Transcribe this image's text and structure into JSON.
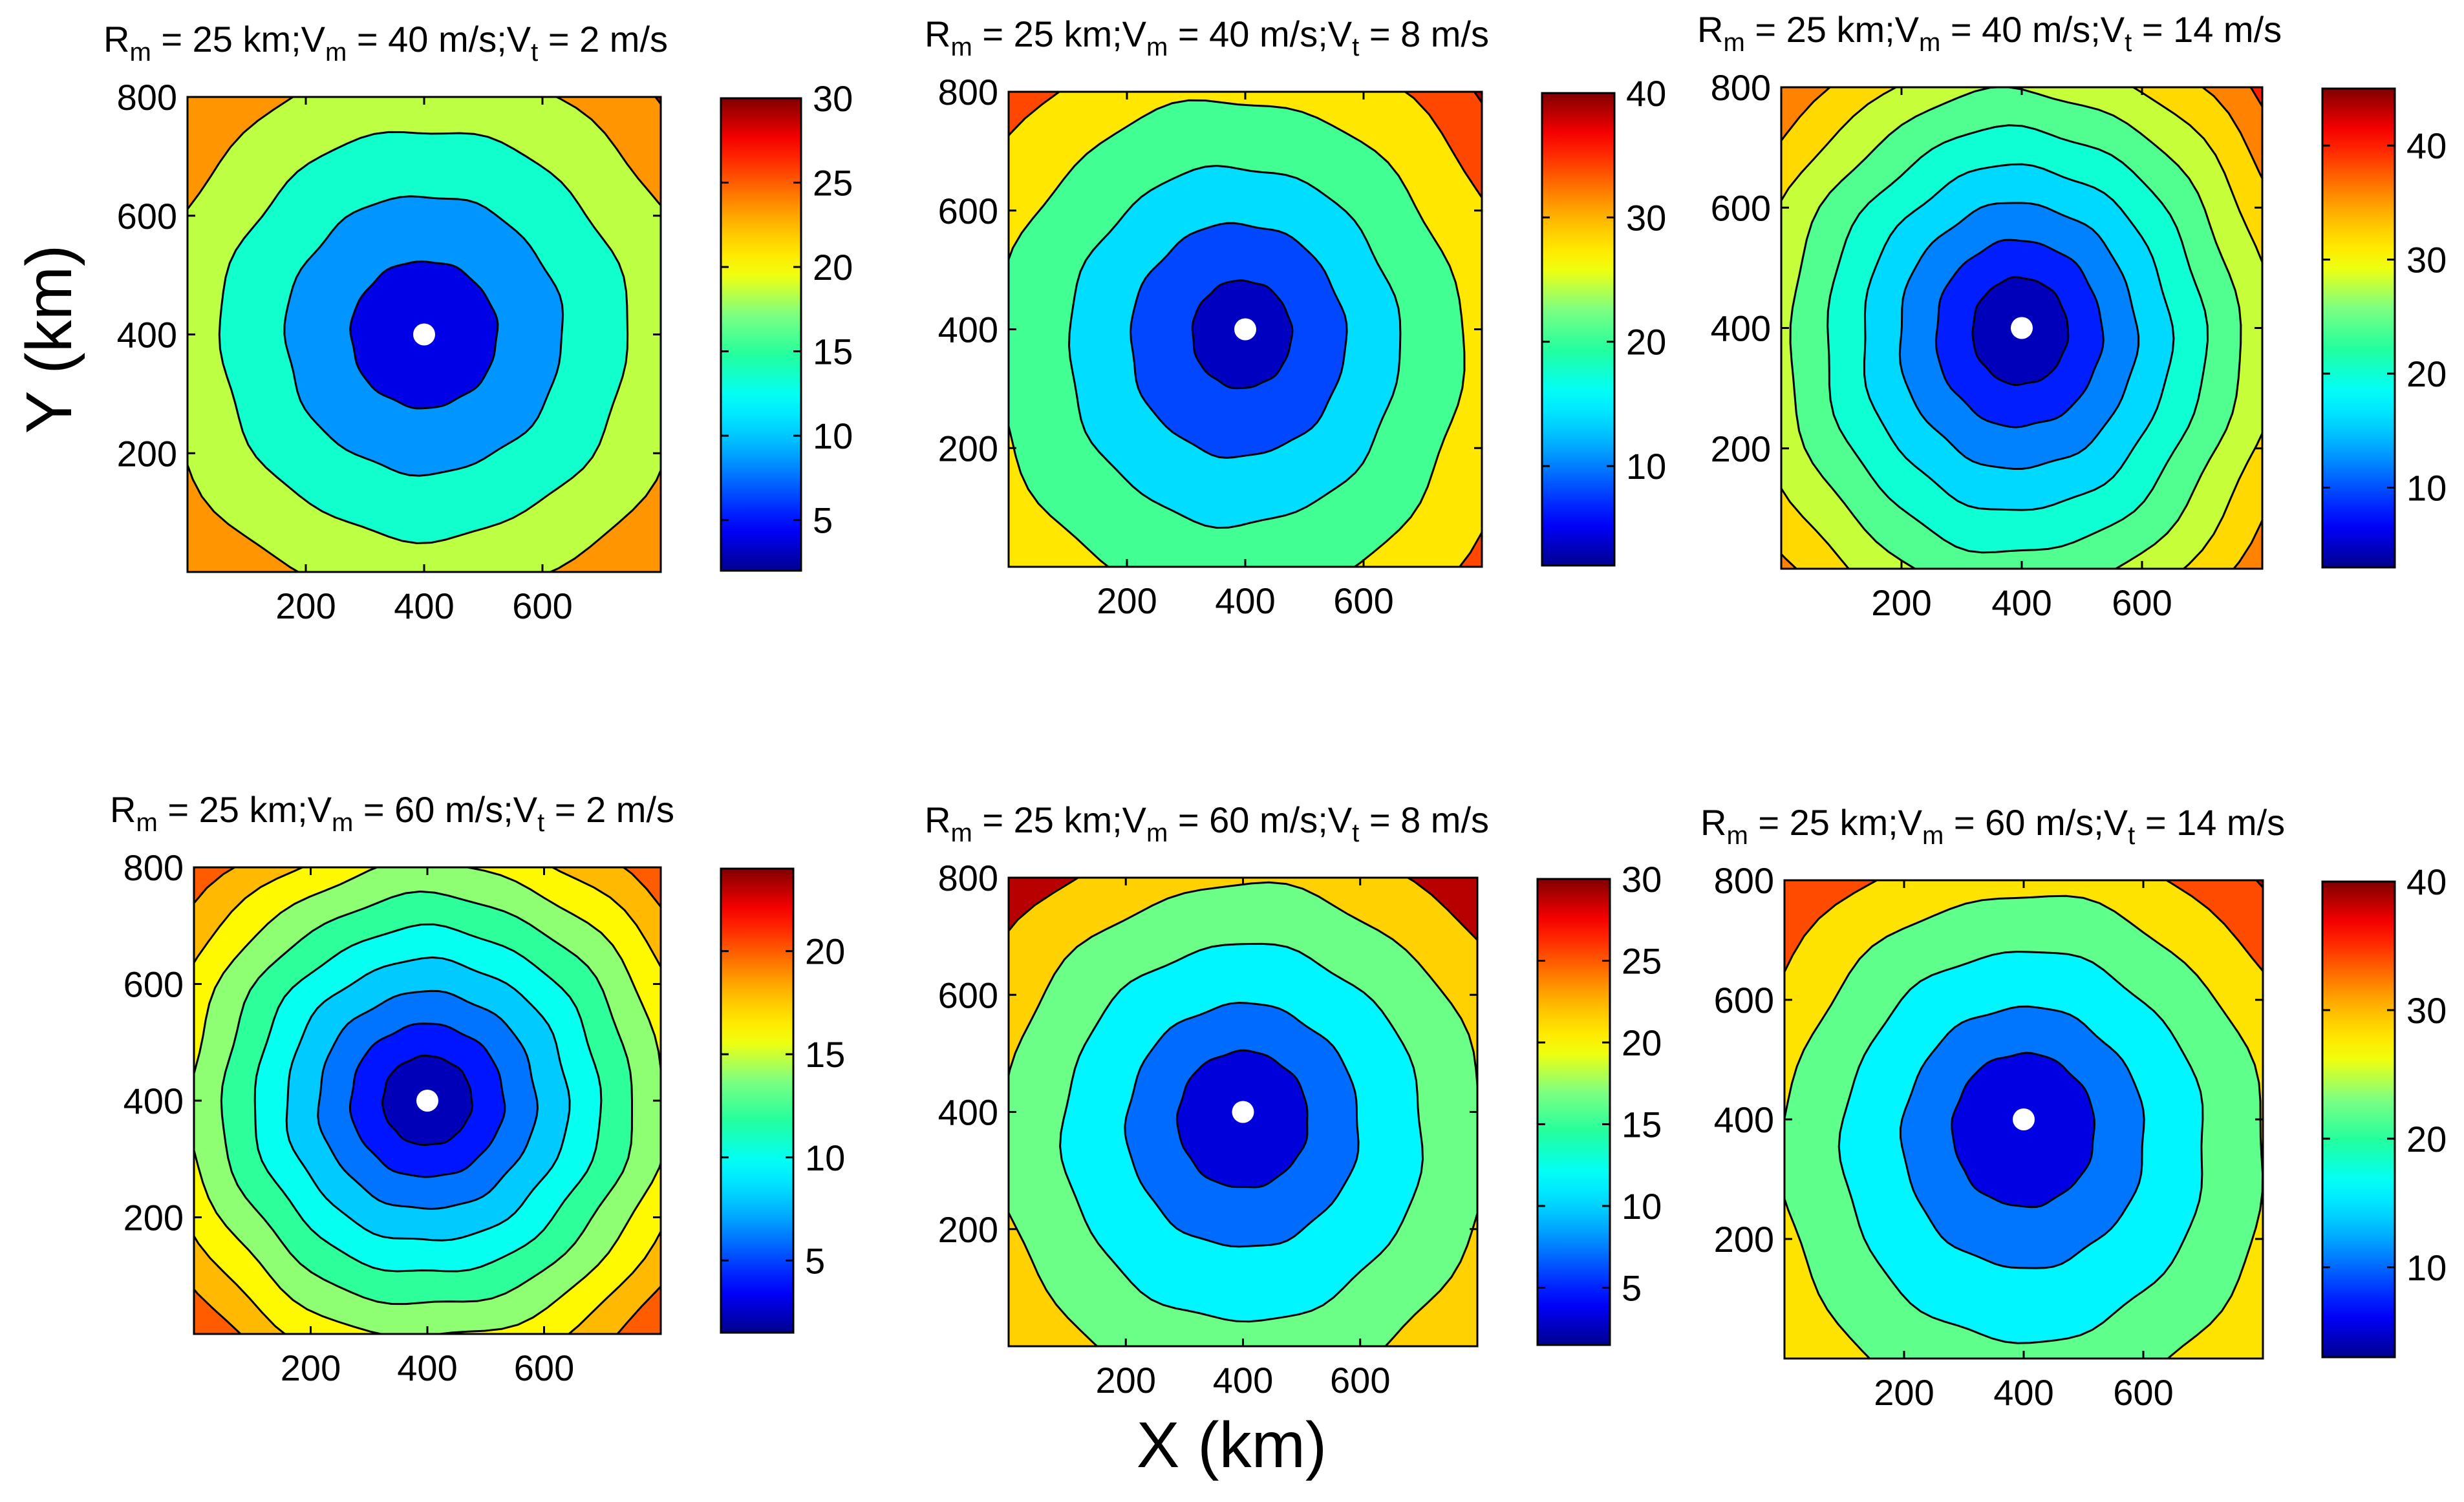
{
  "figure": {
    "xlabel": "X (km)",
    "ylabel": "Y (km)",
    "colormap": [
      "#00008f",
      "#0000ff",
      "#0060ff",
      "#00bfff",
      "#00ffff",
      "#20ff9f",
      "#80ff80",
      "#ffff00",
      "#ffbf00",
      "#ff6000",
      "#ff0000",
      "#800000"
    ]
  },
  "chart_data": [
    {
      "type": "contour",
      "title": {
        "rm": "R",
        "rm_sub": "m",
        "rm_rest": " = 25 km;V",
        "vm_sub": "m",
        "vm_rest": " = 40 m/s;V",
        "vt_sub": "t",
        "vt_rest": " = 2 m/s"
      },
      "xlim": [
        0,
        800
      ],
      "ylim": [
        0,
        800
      ],
      "xticks": [
        200,
        400,
        600
      ],
      "yticks": [
        200,
        400,
        600,
        800
      ],
      "center": [
        400,
        400
      ],
      "colorbar": {
        "min": 2,
        "max": 30,
        "ticks": [
          5,
          10,
          15,
          20,
          25,
          30
        ]
      },
      "levels": [
        6,
        11,
        16,
        21,
        26
      ],
      "shape": {
        "skewX": 0,
        "skewY": 0,
        "stretch": 1.0
      }
    },
    {
      "type": "contour",
      "title": {
        "rm": "R",
        "rm_sub": "m",
        "rm_rest": " = 25 km;V",
        "vm_sub": "m",
        "vm_rest": " = 40 m/s;V",
        "vt_sub": "t",
        "vt_rest": " = 8 m/s"
      },
      "xlim": [
        0,
        800
      ],
      "ylim": [
        0,
        800
      ],
      "xticks": [
        200,
        400,
        600
      ],
      "yticks": [
        200,
        400,
        600,
        800
      ],
      "center": [
        400,
        400
      ],
      "colorbar": {
        "min": 2,
        "max": 40,
        "ticks": [
          10,
          20,
          30,
          40
        ]
      },
      "levels": [
        5,
        11,
        17,
        24,
        31,
        37
      ],
      "shape": {
        "skewX": -20,
        "skewY": 30,
        "stretch": 1.08
      }
    },
    {
      "type": "contour",
      "title": {
        "rm": "R",
        "rm_sub": "m",
        "rm_rest": " = 25 km;V",
        "vm_sub": "m",
        "vm_rest": " = 40 m/s;V",
        "vt_sub": "t",
        "vt_rest": " = 14 m/s"
      },
      "xlim": [
        0,
        800
      ],
      "ylim": [
        0,
        800
      ],
      "xticks": [
        200,
        400,
        600
      ],
      "yticks": [
        200,
        400,
        600,
        800
      ],
      "center": [
        400,
        400
      ],
      "colorbar": {
        "min": 3,
        "max": 45,
        "ticks": [
          10,
          20,
          30,
          40
        ]
      },
      "levels": [
        6,
        10,
        14,
        18,
        22,
        26,
        30,
        34,
        38,
        42
      ],
      "shape": {
        "skewX": -10,
        "skewY": 20,
        "stretch": 1.12
      }
    },
    {
      "type": "contour",
      "title": {
        "rm": "R",
        "rm_sub": "m",
        "rm_rest": " = 25 km;V",
        "vm_sub": "m",
        "vm_rest": " = 60 m/s;V",
        "vt_sub": "t",
        "vt_rest": " = 2 m/s"
      },
      "xlim": [
        0,
        800
      ],
      "ylim": [
        0,
        800
      ],
      "xticks": [
        200,
        400,
        600
      ],
      "yticks": [
        200,
        400,
        600,
        800
      ],
      "center": [
        400,
        400
      ],
      "colorbar": {
        "min": 1.5,
        "max": 24,
        "ticks": [
          5,
          10,
          15,
          20
        ]
      },
      "levels": [
        3,
        5,
        7,
        9,
        11,
        13,
        15,
        17,
        19,
        21
      ],
      "shape": {
        "skewX": 0,
        "skewY": 0,
        "stretch": 1.0
      }
    },
    {
      "type": "contour",
      "title": {
        "rm": "R",
        "rm_sub": "m",
        "rm_rest": " = 25 km;V",
        "vm_sub": "m",
        "vm_rest": " = 60 m/s;V",
        "vt_sub": "t",
        "vt_rest": " = 8 m/s"
      },
      "xlim": [
        0,
        800
      ],
      "ylim": [
        0,
        800
      ],
      "xticks": [
        200,
        400,
        600
      ],
      "yticks": [
        200,
        400,
        600,
        800
      ],
      "center": [
        400,
        400
      ],
      "colorbar": {
        "min": 1.5,
        "max": 30,
        "ticks": [
          5,
          10,
          15,
          20,
          25,
          30
        ]
      },
      "levels": [
        5,
        9,
        14,
        19,
        24
      ],
      "shape": {
        "skewX": 0,
        "skewY": 35,
        "stretch": 1.05
      }
    },
    {
      "type": "contour",
      "title": {
        "rm": "R",
        "rm_sub": "m",
        "rm_rest": " = 25 km;V",
        "vm_sub": "m",
        "vm_rest": " = 60 m/s;V",
        "vt_sub": "t",
        "vt_rest": " = 14 m/s"
      },
      "xlim": [
        0,
        800
      ],
      "ylim": [
        0,
        800
      ],
      "xticks": [
        200,
        400,
        600
      ],
      "yticks": [
        200,
        400,
        600,
        800
      ],
      "center": [
        400,
        400
      ],
      "colorbar": {
        "min": 3,
        "max": 40,
        "ticks": [
          10,
          20,
          30,
          40
        ]
      },
      "levels": [
        8,
        13,
        19,
        25,
        31,
        37
      ],
      "shape": {
        "skewX": 0,
        "skewY": 45,
        "stretch": 1.08
      }
    }
  ]
}
